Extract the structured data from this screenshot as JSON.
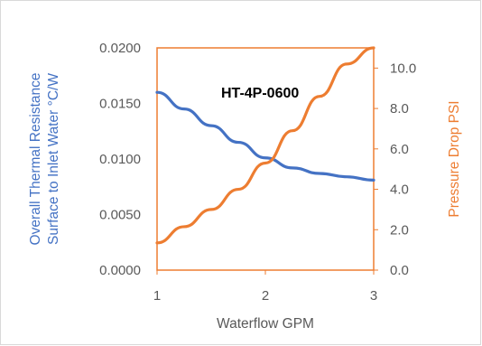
{
  "chart_data": {
    "type": "line",
    "title": "HT-4P-0600",
    "xlabel": "Waterflow GPM",
    "ylabel_left": [
      "Overall Thermal Resistance",
      "Surface to Inlet Water °C/W"
    ],
    "ylabel_right": "Pressure Drop PSI",
    "x": [
      1,
      1.5,
      2,
      2.5,
      3
    ],
    "xlim": [
      1,
      3
    ],
    "x_ticks": [
      "1",
      "2",
      "3"
    ],
    "ylim_left": [
      0,
      0.02
    ],
    "y_ticks_left": [
      "0.0000",
      "0.0050",
      "0.0100",
      "0.0150",
      "0.0200"
    ],
    "ylim_right": [
      0,
      11
    ],
    "y_ticks_right": [
      "0.0",
      "2.0",
      "4.0",
      "6.0",
      "8.0",
      "10.0"
    ],
    "series": [
      {
        "axis": "left",
        "color": "#4472c4",
        "x": [
          1,
          1.25,
          1.5,
          1.75,
          2,
          2.25,
          2.5,
          2.75,
          3
        ],
        "values": [
          0.016,
          0.0145,
          0.013,
          0.0115,
          0.0101,
          0.0092,
          0.0087,
          0.0084,
          0.0081
        ]
      },
      {
        "axis": "right",
        "color": "#ed7d31",
        "x": [
          1,
          1.25,
          1.5,
          1.75,
          2,
          2.25,
          2.5,
          2.75,
          3
        ],
        "values": [
          1.35,
          2.15,
          3.0,
          4.0,
          5.3,
          6.9,
          8.6,
          10.2,
          11.0
        ]
      }
    ],
    "grid": false,
    "legend": "none",
    "colors": {
      "left_axis": "#4472c4",
      "right_axis": "#ed7d31",
      "plot_border": "#ed7d31"
    }
  }
}
